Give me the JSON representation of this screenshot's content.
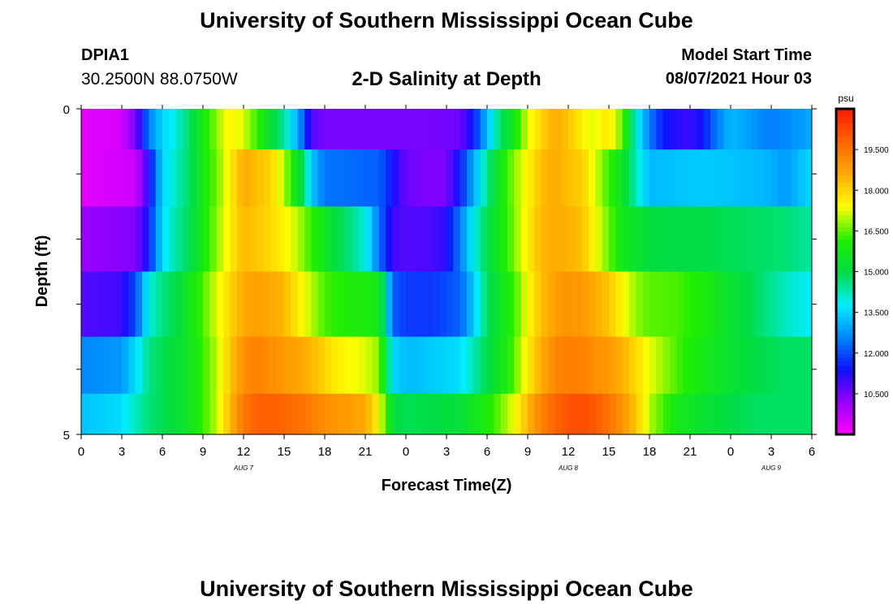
{
  "header": {
    "title": "University of Southern Mississippi Ocean Cube",
    "station": "DPIA1",
    "coordinates": "30.2500N  88.0750W",
    "subtitle": "2-D Salinity at Depth",
    "model_start_label": "Model Start Time",
    "model_start_value": "08/07/2021 Hour 03"
  },
  "footer": {
    "title": "University of Southern Mississippi Ocean Cube"
  },
  "chart_data": {
    "type": "heatmap",
    "title": "2-D Salinity at Depth",
    "xlabel": "Forecast Time(Z)",
    "ylabel": "Depth (ft)",
    "x_tick_labels": [
      "0",
      "3",
      "6",
      "9",
      "12",
      "15",
      "18",
      "21",
      "0",
      "3",
      "6",
      "9",
      "12",
      "15",
      "18",
      "21",
      "0",
      "3",
      "6"
    ],
    "x_range_hours": [
      0,
      54
    ],
    "date_labels": [
      {
        "text": "AUG 7",
        "hour": 12
      },
      {
        "text": "AUG 8",
        "hour": 36
      },
      {
        "text": "AUG 9",
        "hour": 51
      }
    ],
    "y_tick_labels": [
      "0",
      "5"
    ],
    "y_range_ft": [
      0,
      5
    ],
    "depth_levels_ft": [
      0.25,
      1,
      2,
      3,
      4,
      4.75
    ],
    "colorbar": {
      "unit_label": "psu",
      "min": 9.0,
      "max": 21.0,
      "tick_labels": [
        "10.500",
        "12.000",
        "13.500",
        "15.000",
        "16.500",
        "18.000",
        "19.500"
      ],
      "tick_values": [
        10.5,
        12.0,
        13.5,
        15.0,
        16.5,
        18.0,
        19.5
      ],
      "colors": [
        "#ff00ff",
        "#9900ff",
        "#1010ff",
        "#0088ff",
        "#00eeff",
        "#00dd44",
        "#22ee00",
        "#ffff00",
        "#ffaa00",
        "#ff6600",
        "#ff1a00"
      ]
    },
    "series": [
      {
        "depth_ft": 0.25,
        "hours": [
          0,
          3,
          4,
          5,
          6,
          7,
          8,
          9,
          10,
          11,
          12,
          13,
          14,
          15,
          16,
          17,
          18,
          20,
          22,
          24,
          26,
          28,
          29,
          30,
          31,
          32,
          33,
          34,
          35,
          36,
          37,
          38,
          39,
          40,
          41,
          42,
          43,
          44,
          45,
          46,
          47,
          48,
          50,
          51,
          52,
          54
        ],
        "values": [
          9.3,
          9.5,
          10.5,
          12.5,
          13.5,
          14.0,
          14.8,
          15.8,
          16.8,
          17.6,
          17.2,
          16.3,
          15.2,
          14.5,
          13.0,
          10.8,
          10.5,
          10.5,
          10.5,
          10.5,
          10.5,
          10.6,
          11.5,
          13.2,
          14.8,
          15.8,
          17.2,
          18.0,
          18.6,
          18.2,
          17.6,
          17.2,
          17.8,
          16.5,
          14.0,
          12.5,
          11.5,
          11.2,
          11.0,
          11.5,
          12.5,
          13.2,
          12.7,
          12.5,
          12.6,
          13.0
        ]
      },
      {
        "depth_ft": 1,
        "hours": [
          0,
          4,
          5,
          6,
          7,
          8,
          9,
          10,
          11,
          12,
          13,
          14,
          15,
          16,
          17,
          17.5,
          18,
          20,
          22,
          24,
          26,
          27,
          28,
          29,
          30,
          31,
          32,
          33,
          34,
          35,
          36,
          37,
          38,
          39,
          40,
          41,
          42,
          44,
          46,
          48,
          50,
          51,
          52,
          54
        ],
        "values": [
          9.3,
          9.6,
          11.2,
          13.5,
          14.2,
          14.8,
          15.8,
          16.6,
          17.6,
          18.6,
          18.3,
          18.0,
          17.0,
          15.5,
          13.5,
          12.8,
          12.4,
          12.3,
          12.2,
          10.6,
          10.4,
          10.5,
          11.5,
          13.0,
          14.5,
          15.8,
          16.8,
          17.5,
          18.3,
          18.6,
          18.3,
          18.1,
          17.2,
          16.3,
          15.5,
          14.2,
          13.2,
          13.3,
          13.4,
          13.3,
          13.2,
          13.1,
          12.8,
          13.6
        ]
      },
      {
        "depth_ft": 2,
        "hours": [
          0,
          4,
          5,
          6,
          7,
          8,
          9,
          10,
          11,
          12,
          13,
          14,
          15,
          16,
          17,
          18,
          19,
          20,
          21,
          22,
          23,
          24,
          26,
          27,
          28,
          29,
          30,
          31,
          32,
          33,
          34,
          35,
          36,
          37,
          38,
          39,
          40,
          41,
          42,
          44,
          46,
          48,
          50,
          52,
          54
        ],
        "values": [
          10.2,
          10.4,
          11.5,
          13.6,
          14.4,
          14.9,
          15.8,
          16.8,
          17.6,
          18.4,
          18.2,
          17.9,
          17.6,
          17.0,
          16.3,
          15.6,
          15.0,
          14.6,
          14.0,
          12.4,
          11.0,
          10.8,
          10.9,
          11.2,
          12.5,
          13.9,
          15.0,
          15.8,
          16.7,
          17.6,
          18.4,
          18.6,
          18.5,
          18.3,
          17.4,
          16.6,
          15.7,
          15.4,
          15.1,
          15.0,
          15.0,
          14.9,
          14.8,
          14.7,
          14.4
        ]
      },
      {
        "depth_ft": 3,
        "hours": [
          0,
          3,
          4,
          5,
          6,
          7,
          8,
          9,
          10,
          11,
          12,
          13,
          14,
          15,
          16,
          17,
          18,
          19,
          20,
          21,
          22,
          23,
          24,
          26,
          28,
          29,
          30,
          31,
          32,
          33,
          34,
          35,
          36,
          37,
          38,
          39,
          40,
          41,
          42,
          44,
          46,
          48,
          50,
          52,
          54
        ],
        "values": [
          10.8,
          11.0,
          12.0,
          14.0,
          14.6,
          15.0,
          15.7,
          16.4,
          17.2,
          18.0,
          18.6,
          18.8,
          18.6,
          18.4,
          17.7,
          17.0,
          16.4,
          16.2,
          16.0,
          16.0,
          15.8,
          12.2,
          11.8,
          11.8,
          12.2,
          13.4,
          14.8,
          15.5,
          16.3,
          17.4,
          18.3,
          18.8,
          19.0,
          18.9,
          18.6,
          18.2,
          17.5,
          16.8,
          16.5,
          16.4,
          16.0,
          15.3,
          14.8,
          14.2,
          13.8
        ]
      },
      {
        "depth_ft": 4,
        "hours": [
          0,
          3,
          4,
          5,
          6,
          7,
          8,
          9,
          10,
          11,
          12,
          13,
          14,
          15,
          16,
          17,
          18,
          19,
          20,
          21,
          22,
          23,
          24,
          26,
          28,
          29,
          30,
          31,
          32,
          33,
          34,
          35,
          36,
          37,
          38,
          39,
          40,
          41,
          42,
          44,
          46,
          48,
          50,
          52,
          54
        ],
        "values": [
          12.6,
          12.8,
          13.6,
          14.6,
          14.9,
          15.2,
          15.6,
          16.3,
          17.0,
          18.2,
          19.1,
          19.3,
          19.1,
          18.9,
          18.7,
          18.4,
          18.0,
          17.6,
          17.4,
          17.2,
          16.8,
          13.6,
          13.2,
          13.4,
          13.6,
          14.3,
          15.0,
          15.6,
          16.5,
          17.6,
          18.6,
          19.2,
          19.4,
          19.3,
          19.1,
          18.9,
          18.5,
          17.9,
          17.3,
          16.4,
          15.8,
          15.3,
          15.0,
          14.8,
          14.8
        ]
      },
      {
        "depth_ft": 4.75,
        "hours": [
          0,
          3,
          4,
          5,
          6,
          7,
          8,
          9,
          10,
          11,
          12,
          13,
          14,
          15,
          16,
          17,
          18,
          19,
          20,
          21,
          22,
          23,
          24,
          26,
          28,
          29,
          30,
          31,
          32,
          33,
          34,
          35,
          36,
          37,
          38,
          39,
          40,
          41,
          42,
          44,
          46,
          48,
          50,
          52,
          54
        ],
        "values": [
          13.3,
          13.6,
          14.2,
          14.7,
          14.9,
          15.2,
          15.6,
          16.3,
          17.0,
          18.4,
          19.5,
          19.9,
          19.9,
          19.8,
          19.6,
          19.4,
          19.1,
          18.9,
          18.8,
          18.6,
          17.5,
          15.2,
          14.9,
          15.0,
          15.2,
          15.6,
          16.0,
          16.6,
          17.4,
          18.4,
          19.3,
          19.8,
          20.1,
          20.2,
          20.0,
          19.6,
          19.0,
          18.2,
          17.0,
          15.8,
          15.3,
          15.0,
          14.8,
          14.8,
          14.8
        ]
      }
    ]
  }
}
